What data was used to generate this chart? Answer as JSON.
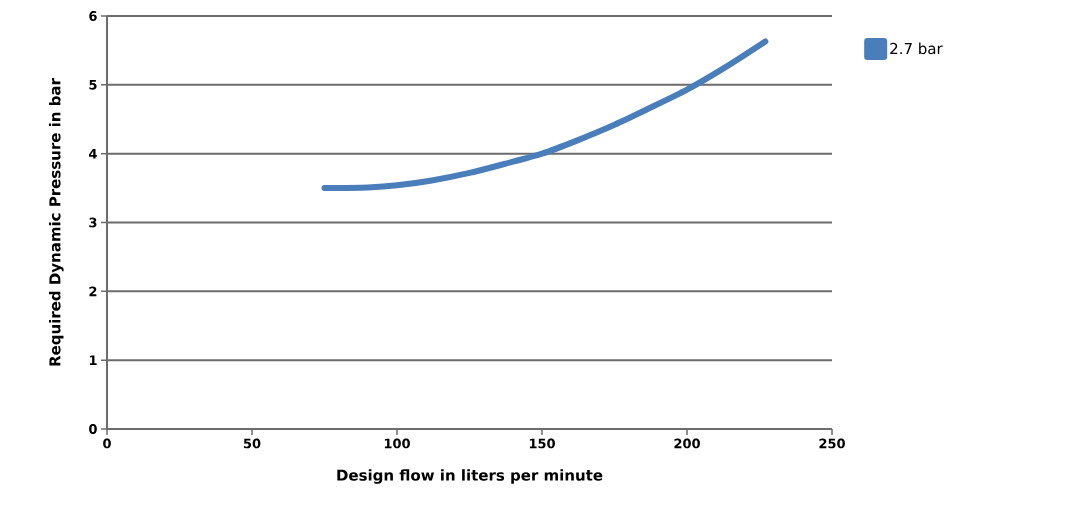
{
  "chart_data": {
    "type": "line",
    "xlabel": "Design flow in liters per minute",
    "ylabel": "Required Dynamic Pressure in bar",
    "xlim": [
      0,
      250
    ],
    "ylim": [
      0,
      6
    ],
    "xticks": [
      0,
      50,
      100,
      150,
      200,
      250
    ],
    "yticks": [
      0,
      1,
      2,
      3,
      4,
      5,
      6
    ],
    "grid": "y",
    "legend": "top right",
    "marker": "none",
    "line_style": "solid",
    "series": [
      {
        "name": "2.7 bar",
        "color": "#4a7ebb",
        "x": [
          75,
          90,
          100,
          112,
          125,
          137,
          150,
          162,
          175,
          187,
          200,
          213,
          227
        ],
        "values": [
          3.5,
          3.51,
          3.54,
          3.61,
          3.72,
          3.85,
          4.0,
          4.19,
          4.42,
          4.66,
          4.93,
          5.25,
          5.63
        ]
      }
    ]
  }
}
